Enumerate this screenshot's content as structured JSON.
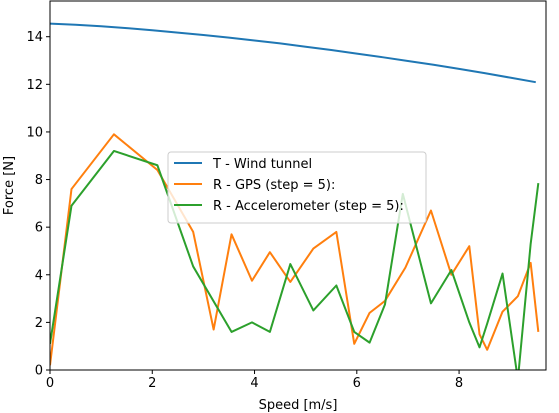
{
  "chart_data": {
    "type": "line",
    "xlabel": "Speed [m/s]",
    "ylabel": "Force [N]",
    "xlim": [
      0,
      9.7
    ],
    "ylim": [
      0,
      15.5
    ],
    "xticks": [
      0,
      2,
      4,
      6,
      8
    ],
    "yticks": [
      0,
      2,
      4,
      6,
      8,
      10,
      12,
      14
    ],
    "grid": false,
    "legend_position": "center",
    "series": [
      {
        "name": "T - Wind tunnel",
        "color": "#1f77b4",
        "x": [
          0,
          0.5,
          1,
          1.5,
          2,
          2.5,
          3,
          3.5,
          4,
          4.5,
          5,
          5.5,
          6,
          6.5,
          7,
          7.5,
          8,
          8.5,
          9,
          9.5
        ],
        "y": [
          14.55,
          14.5,
          14.44,
          14.36,
          14.27,
          14.17,
          14.07,
          13.96,
          13.84,
          13.72,
          13.58,
          13.44,
          13.29,
          13.14,
          12.98,
          12.82,
          12.65,
          12.47,
          12.28,
          12.09
        ]
      },
      {
        "name": "R - GPS (step = 5):",
        "color": "#ff7f0e",
        "x": [
          0,
          0.42,
          1.25,
          2.1,
          2.8,
          3.2,
          3.55,
          3.95,
          4.3,
          4.7,
          5.15,
          5.6,
          5.95,
          6.25,
          6.55,
          6.95,
          7.45,
          7.85,
          8.2,
          8.4,
          8.55,
          8.85,
          9.15,
          9.4,
          9.55
        ],
        "y": [
          0.2,
          7.6,
          9.9,
          8.4,
          5.8,
          1.7,
          5.7,
          3.75,
          4.95,
          3.7,
          5.1,
          5.8,
          1.1,
          2.4,
          2.9,
          4.3,
          6.7,
          4.0,
          5.2,
          1.5,
          0.85,
          2.45,
          3.1,
          4.5,
          1.6
        ]
      },
      {
        "name": "R - Accelerometer (step = 5):",
        "color": "#2ca02c",
        "x": [
          0,
          0.42,
          1.25,
          2.1,
          2.8,
          3.55,
          3.95,
          4.3,
          4.7,
          5.15,
          5.6,
          5.95,
          6.25,
          6.55,
          6.9,
          7.45,
          7.85,
          8.2,
          8.4,
          8.55,
          8.85,
          9.15,
          9.4,
          9.55
        ],
        "y": [
          1.1,
          6.9,
          9.2,
          8.6,
          4.35,
          1.6,
          2.0,
          1.6,
          4.45,
          2.5,
          3.55,
          1.6,
          1.15,
          2.75,
          7.4,
          2.8,
          4.2,
          2.0,
          0.95,
          1.95,
          4.05,
          -0.4,
          5.3,
          7.85
        ]
      }
    ]
  }
}
